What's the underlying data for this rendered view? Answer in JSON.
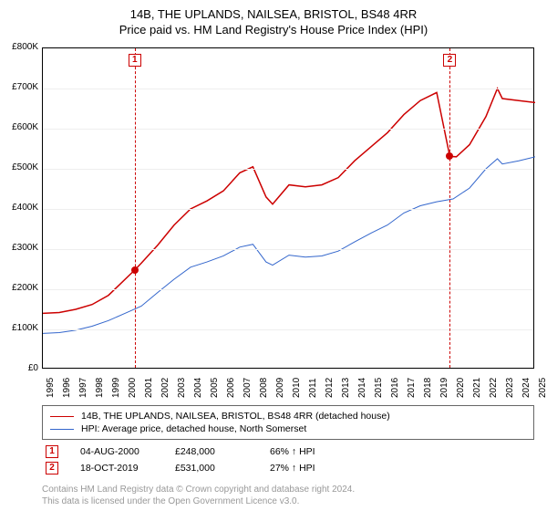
{
  "title_line1": "14B, THE UPLANDS, NAILSEA, BRISTOL, BS48 4RR",
  "title_line2": "Price paid vs. HM Land Registry's House Price Index (HPI)",
  "chart": {
    "type": "line",
    "background_color": "#ffffff",
    "grid_color": "#eeeeee",
    "axis_color": "#000000",
    "label_fontsize": 10,
    "x": {
      "min": 1995,
      "max": 2025,
      "labels": [
        "1995",
        "1996",
        "1997",
        "1998",
        "1999",
        "2000",
        "2001",
        "2002",
        "2003",
        "2004",
        "2005",
        "2006",
        "2007",
        "2008",
        "2009",
        "2010",
        "2011",
        "2012",
        "2013",
        "2014",
        "2015",
        "2016",
        "2017",
        "2018",
        "2019",
        "2020",
        "2021",
        "2022",
        "2023",
        "2024",
        "2025"
      ]
    },
    "y": {
      "min": 0,
      "max": 800000,
      "step": 100000,
      "labels": [
        "£0",
        "£100K",
        "£200K",
        "£300K",
        "£400K",
        "£500K",
        "£600K",
        "£700K",
        "£800K"
      ]
    },
    "series": [
      {
        "name": "property",
        "color": "#cc0000",
        "line_width": 1.5,
        "points": [
          [
            1995,
            140000
          ],
          [
            1996,
            142000
          ],
          [
            1997,
            150000
          ],
          [
            1998,
            162000
          ],
          [
            1999,
            185000
          ],
          [
            2000.6,
            248000
          ],
          [
            2001,
            265000
          ],
          [
            2002,
            310000
          ],
          [
            2003,
            360000
          ],
          [
            2004,
            400000
          ],
          [
            2005,
            420000
          ],
          [
            2006,
            445000
          ],
          [
            2007,
            490000
          ],
          [
            2007.8,
            505000
          ],
          [
            2008.6,
            430000
          ],
          [
            2009,
            412000
          ],
          [
            2010,
            460000
          ],
          [
            2011,
            455000
          ],
          [
            2012,
            460000
          ],
          [
            2013,
            478000
          ],
          [
            2014,
            520000
          ],
          [
            2015,
            555000
          ],
          [
            2016,
            590000
          ],
          [
            2017,
            635000
          ],
          [
            2018,
            670000
          ],
          [
            2019,
            690000
          ],
          [
            2019.8,
            531000
          ],
          [
            2020.2,
            530000
          ],
          [
            2021,
            560000
          ],
          [
            2022,
            630000
          ],
          [
            2022.7,
            700000
          ],
          [
            2023,
            675000
          ],
          [
            2024,
            670000
          ],
          [
            2025,
            665000
          ]
        ]
      },
      {
        "name": "hpi",
        "color": "#3366cc",
        "line_width": 1.0,
        "points": [
          [
            1995,
            90000
          ],
          [
            1996,
            92000
          ],
          [
            1997,
            98000
          ],
          [
            1998,
            108000
          ],
          [
            1999,
            122000
          ],
          [
            2000,
            140000
          ],
          [
            2001,
            158000
          ],
          [
            2002,
            192000
          ],
          [
            2003,
            225000
          ],
          [
            2004,
            255000
          ],
          [
            2005,
            268000
          ],
          [
            2006,
            283000
          ],
          [
            2007,
            305000
          ],
          [
            2007.8,
            312000
          ],
          [
            2008.6,
            268000
          ],
          [
            2009,
            260000
          ],
          [
            2010,
            285000
          ],
          [
            2011,
            280000
          ],
          [
            2012,
            283000
          ],
          [
            2013,
            295000
          ],
          [
            2014,
            318000
          ],
          [
            2015,
            340000
          ],
          [
            2016,
            360000
          ],
          [
            2017,
            390000
          ],
          [
            2018,
            408000
          ],
          [
            2019,
            418000
          ],
          [
            2020,
            425000
          ],
          [
            2021,
            452000
          ],
          [
            2022,
            500000
          ],
          [
            2022.7,
            525000
          ],
          [
            2023,
            512000
          ],
          [
            2024,
            520000
          ],
          [
            2025,
            530000
          ]
        ]
      }
    ],
    "event_markers": [
      {
        "label": "1",
        "x": 2000.6,
        "y": 248000,
        "color": "#cc0000"
      },
      {
        "label": "2",
        "x": 2019.8,
        "y": 531000,
        "color": "#cc0000"
      }
    ]
  },
  "legend": {
    "items": [
      {
        "color": "#cc0000",
        "text": "14B, THE UPLANDS, NAILSEA, BRISTOL, BS48 4RR (detached house)"
      },
      {
        "color": "#3366cc",
        "text": "HPI: Average price, detached house, North Somerset"
      }
    ]
  },
  "transactions": [
    {
      "label": "1",
      "color": "#cc0000",
      "date": "04-AUG-2000",
      "price": "£248,000",
      "hpi_delta": "66% ↑ HPI"
    },
    {
      "label": "2",
      "color": "#cc0000",
      "date": "18-OCT-2019",
      "price": "£531,000",
      "hpi_delta": "27% ↑ HPI"
    }
  ],
  "footer": {
    "line1": "Contains HM Land Registry data © Crown copyright and database right 2024.",
    "line2": "This data is licensed under the Open Government Licence v3.0."
  }
}
